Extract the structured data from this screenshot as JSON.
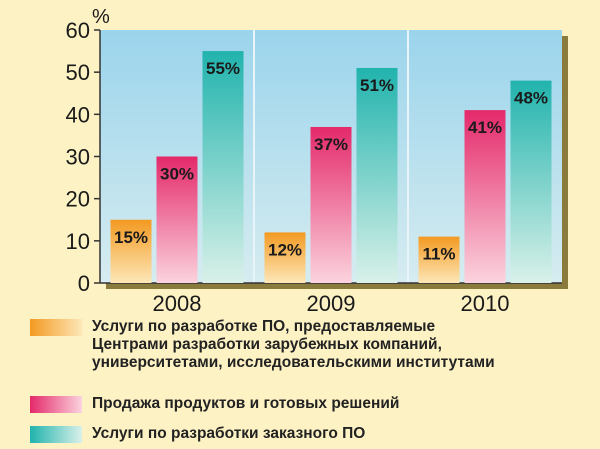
{
  "chart_data": {
    "type": "bar",
    "y_unit": "%",
    "categories": [
      "2008",
      "2009",
      "2010"
    ],
    "yticks": [
      "0",
      "10",
      "20",
      "30",
      "40",
      "50",
      "60"
    ],
    "ylim": [
      0,
      60
    ],
    "grid": false,
    "legend_position": "bottom",
    "series": [
      {
        "name": "Услуги по разработке ПО, предоставляемые\nЦентрами разработки зарубежных компаний,\nуниверситетами, исследовательскими институтами",
        "values": [
          15,
          12,
          11
        ],
        "labels": [
          "15%",
          "12%",
          "11%"
        ],
        "color": "#f7a12e"
      },
      {
        "name": "Продажа продуктов и готовых решений",
        "values": [
          30,
          37,
          41
        ],
        "labels": [
          "30%",
          "37%",
          "41%"
        ],
        "color": "#e8336e"
      },
      {
        "name": "Услуги по разработки заказного ПО",
        "values": [
          55,
          51,
          48
        ],
        "labels": [
          "55%",
          "51%",
          "48%"
        ],
        "color": "#2bb9b4"
      }
    ],
    "colors": {
      "page_background": "#fdf2c4",
      "plot_background": "#a9dbef",
      "plot_shadow": "#8a7a3c"
    }
  }
}
